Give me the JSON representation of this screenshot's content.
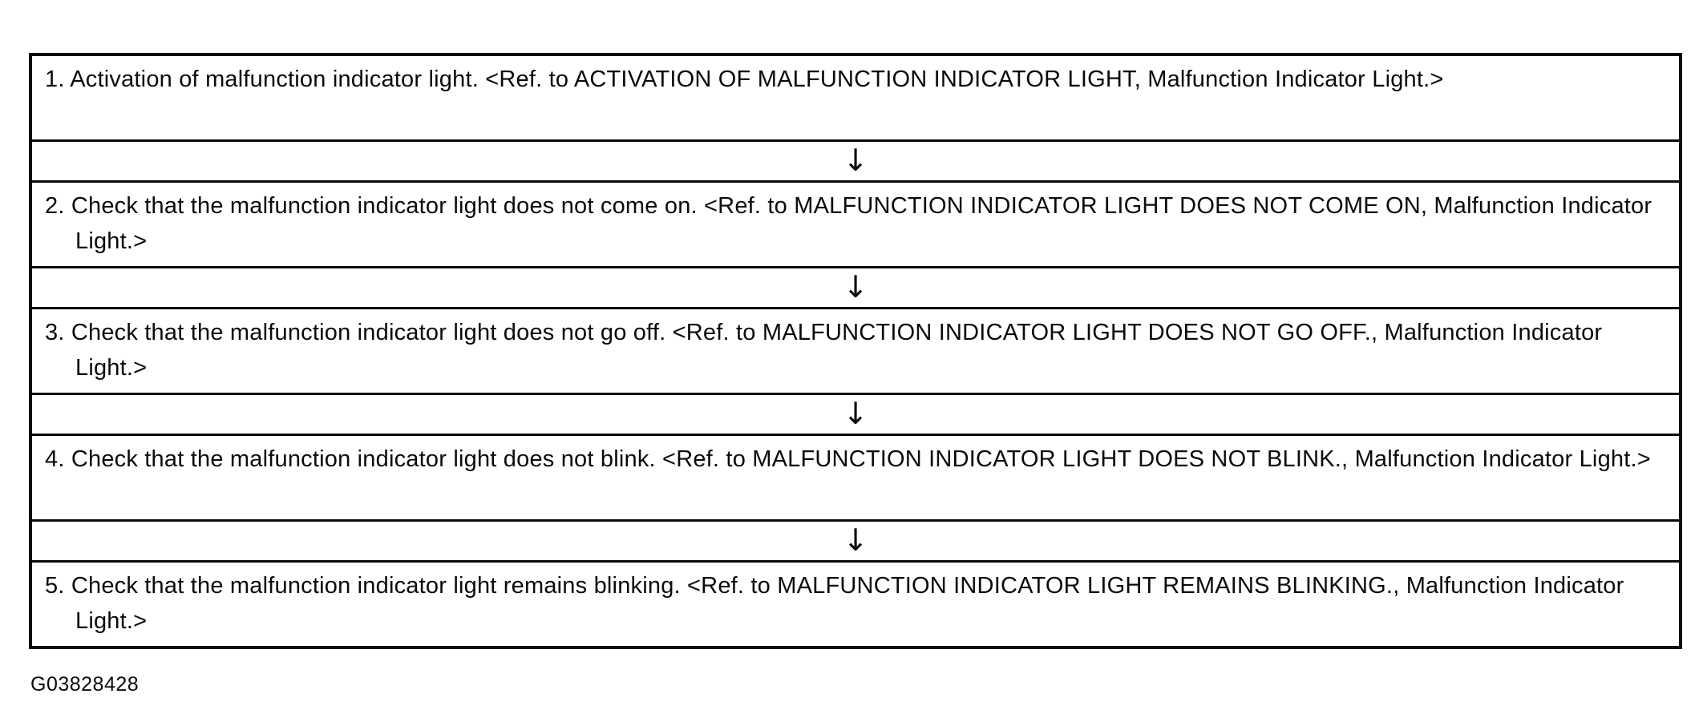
{
  "colors": {
    "ink": "#0b0b0b",
    "background": "#ffffff"
  },
  "flowchart": {
    "connector_icon": "down-arrow",
    "connector_glyph": "↓",
    "steps": [
      {
        "text": "1. Activation of malfunction indicator light. <Ref. to ACTIVATION OF MALFUNCTION INDICATOR LIGHT, Malfunction Indicator Light.>"
      },
      {
        "text": "2. Check that the malfunction indicator light does not come on. <Ref. to MALFUNCTION INDICATOR LIGHT DOES NOT COME ON, Malfunction Indicator Light.>"
      },
      {
        "text": "3. Check that the malfunction indicator light does not go off. <Ref. to MALFUNCTION INDICATOR LIGHT DOES NOT GO OFF., Malfunction Indicator Light.>"
      },
      {
        "text": "4. Check that the malfunction indicator light does not blink. <Ref. to MALFUNCTION INDICATOR LIGHT DOES NOT BLINK., Malfunction Indicator Light.>"
      },
      {
        "text": "5. Check that the malfunction indicator light remains blinking. <Ref. to MALFUNCTION INDICATOR LIGHT REMAINS BLINKING., Malfunction Indicator Light.>"
      }
    ]
  },
  "figure": {
    "label": "G03828428"
  }
}
